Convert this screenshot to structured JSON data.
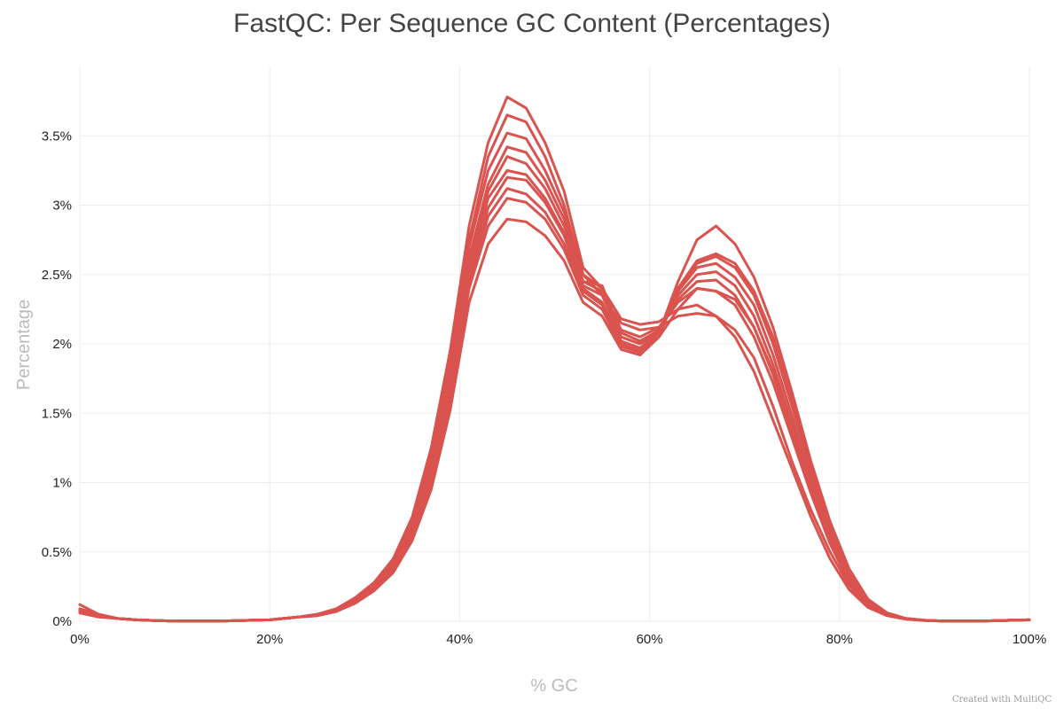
{
  "chart_data": {
    "type": "line",
    "title": "FastQC: Per Sequence GC Content (Percentages)",
    "xlabel": "% GC",
    "ylabel": "Percentage",
    "xlim": [
      0,
      100
    ],
    "ylim": [
      0,
      4.0
    ],
    "x_ticks": [
      0,
      20,
      40,
      60,
      80,
      100
    ],
    "x_tick_labels": [
      "0%",
      "20%",
      "40%",
      "60%",
      "80%",
      "100%"
    ],
    "y_ticks": [
      0,
      0.5,
      1,
      1.5,
      2,
      2.5,
      3,
      3.5
    ],
    "y_tick_labels": [
      "0%",
      "0.5%",
      "1%",
      "1.5%",
      "2%",
      "2.5%",
      "3%",
      "3.5%"
    ],
    "grid": true,
    "line_color": "#d9534f",
    "x": [
      0,
      2,
      4,
      6,
      8,
      10,
      15,
      20,
      23,
      25,
      27,
      29,
      31,
      33,
      35,
      37,
      39,
      41,
      43,
      45,
      47,
      49,
      51,
      53,
      55,
      57,
      59,
      61,
      63,
      65,
      67,
      69,
      71,
      73,
      75,
      77,
      79,
      81,
      83,
      85,
      87,
      89,
      91,
      95,
      100
    ],
    "series": [
      {
        "values": [
          0.12,
          0.05,
          0.02,
          0.01,
          0.005,
          0.002,
          0.002,
          0.01,
          0.03,
          0.05,
          0.09,
          0.17,
          0.28,
          0.45,
          0.75,
          1.25,
          1.95,
          2.85,
          3.45,
          3.78,
          3.7,
          3.45,
          3.1,
          2.55,
          2.4,
          2.18,
          2.14,
          2.16,
          2.25,
          2.28,
          2.2,
          2.05,
          1.8,
          1.45,
          1.1,
          0.75,
          0.45,
          0.23,
          0.1,
          0.04,
          0.015,
          0.005,
          0.002,
          0.002,
          0.01
        ]
      },
      {
        "values": [
          0.09,
          0.05,
          0.02,
          0.01,
          0.005,
          0.002,
          0.002,
          0.01,
          0.03,
          0.05,
          0.09,
          0.16,
          0.27,
          0.44,
          0.72,
          1.2,
          1.88,
          2.75,
          3.35,
          3.65,
          3.6,
          3.35,
          3.0,
          2.5,
          2.35,
          2.15,
          2.1,
          2.12,
          2.2,
          2.22,
          2.2,
          2.1,
          1.9,
          1.55,
          1.15,
          0.8,
          0.5,
          0.26,
          0.11,
          0.045,
          0.017,
          0.006,
          0.002,
          0.002,
          0.01
        ]
      },
      {
        "values": [
          0.08,
          0.04,
          0.02,
          0.01,
          0.005,
          0.002,
          0.002,
          0.01,
          0.03,
          0.05,
          0.08,
          0.16,
          0.26,
          0.42,
          0.7,
          1.15,
          1.8,
          2.7,
          3.25,
          3.52,
          3.48,
          3.25,
          2.95,
          2.5,
          2.4,
          2.1,
          2.05,
          2.12,
          2.3,
          2.4,
          2.38,
          2.28,
          2.05,
          1.72,
          1.32,
          0.92,
          0.56,
          0.28,
          0.12,
          0.05,
          0.018,
          0.006,
          0.002,
          0.002,
          0.01
        ]
      },
      {
        "values": [
          0.08,
          0.04,
          0.02,
          0.01,
          0.005,
          0.002,
          0.002,
          0.01,
          0.03,
          0.05,
          0.08,
          0.15,
          0.25,
          0.4,
          0.68,
          1.12,
          1.75,
          2.62,
          3.15,
          3.42,
          3.38,
          3.18,
          2.9,
          2.45,
          2.42,
          2.08,
          2.02,
          2.1,
          2.32,
          2.45,
          2.46,
          2.35,
          2.12,
          1.78,
          1.37,
          0.95,
          0.58,
          0.3,
          0.13,
          0.05,
          0.018,
          0.006,
          0.002,
          0.002,
          0.01
        ]
      },
      {
        "values": [
          0.08,
          0.04,
          0.02,
          0.01,
          0.005,
          0.002,
          0.002,
          0.01,
          0.03,
          0.05,
          0.08,
          0.15,
          0.25,
          0.4,
          0.66,
          1.1,
          1.72,
          2.58,
          3.1,
          3.35,
          3.3,
          3.12,
          2.85,
          2.45,
          2.38,
          2.05,
          2.0,
          2.08,
          2.35,
          2.5,
          2.52,
          2.42,
          2.2,
          1.85,
          1.42,
          0.98,
          0.6,
          0.31,
          0.13,
          0.05,
          0.018,
          0.006,
          0.002,
          0.002,
          0.01
        ]
      },
      {
        "values": [
          0.08,
          0.04,
          0.02,
          0.01,
          0.005,
          0.002,
          0.002,
          0.01,
          0.03,
          0.05,
          0.08,
          0.15,
          0.24,
          0.39,
          0.65,
          1.08,
          1.7,
          2.55,
          3.05,
          3.25,
          3.22,
          3.05,
          2.8,
          2.42,
          2.35,
          2.05,
          2.0,
          2.1,
          2.38,
          2.55,
          2.58,
          2.48,
          2.28,
          1.92,
          1.48,
          1.02,
          0.63,
          0.33,
          0.14,
          0.055,
          0.02,
          0.007,
          0.002,
          0.002,
          0.01
        ]
      },
      {
        "values": [
          0.07,
          0.04,
          0.02,
          0.01,
          0.005,
          0.002,
          0.002,
          0.01,
          0.03,
          0.05,
          0.08,
          0.15,
          0.24,
          0.38,
          0.63,
          1.05,
          1.66,
          2.5,
          2.98,
          3.2,
          3.18,
          3.02,
          2.78,
          2.4,
          2.3,
          2.02,
          1.97,
          2.08,
          2.38,
          2.58,
          2.63,
          2.55,
          2.35,
          2.0,
          1.55,
          1.08,
          0.66,
          0.35,
          0.15,
          0.055,
          0.02,
          0.007,
          0.002,
          0.002,
          0.01
        ]
      },
      {
        "values": [
          0.07,
          0.04,
          0.02,
          0.01,
          0.005,
          0.002,
          0.002,
          0.01,
          0.03,
          0.05,
          0.07,
          0.14,
          0.23,
          0.37,
          0.61,
          1.02,
          1.62,
          2.45,
          2.92,
          3.12,
          3.08,
          2.95,
          2.72,
          2.38,
          2.28,
          2.0,
          1.95,
          2.05,
          2.4,
          2.6,
          2.65,
          2.58,
          2.38,
          2.05,
          1.6,
          1.12,
          0.69,
          0.36,
          0.15,
          0.06,
          0.02,
          0.007,
          0.002,
          0.002,
          0.01
        ]
      },
      {
        "values": [
          0.07,
          0.04,
          0.02,
          0.01,
          0.005,
          0.002,
          0.002,
          0.01,
          0.03,
          0.04,
          0.07,
          0.14,
          0.23,
          0.36,
          0.6,
          1.0,
          1.6,
          2.4,
          2.85,
          3.05,
          3.02,
          2.9,
          2.68,
          2.35,
          2.25,
          1.98,
          1.94,
          2.08,
          2.45,
          2.75,
          2.85,
          2.72,
          2.48,
          2.12,
          1.65,
          1.15,
          0.72,
          0.38,
          0.16,
          0.06,
          0.02,
          0.007,
          0.002,
          0.002,
          0.01
        ]
      },
      {
        "values": [
          0.06,
          0.03,
          0.02,
          0.01,
          0.005,
          0.002,
          0.002,
          0.01,
          0.03,
          0.04,
          0.07,
          0.13,
          0.22,
          0.35,
          0.58,
          0.95,
          1.52,
          2.3,
          2.72,
          2.9,
          2.88,
          2.78,
          2.6,
          2.3,
          2.2,
          1.96,
          1.92,
          2.05,
          2.25,
          2.4,
          2.38,
          2.32,
          2.12,
          1.8,
          1.4,
          0.98,
          0.6,
          0.32,
          0.14,
          0.05,
          0.018,
          0.006,
          0.002,
          0.002,
          0.01
        ]
      }
    ]
  },
  "credit": "Created with MultiQC"
}
